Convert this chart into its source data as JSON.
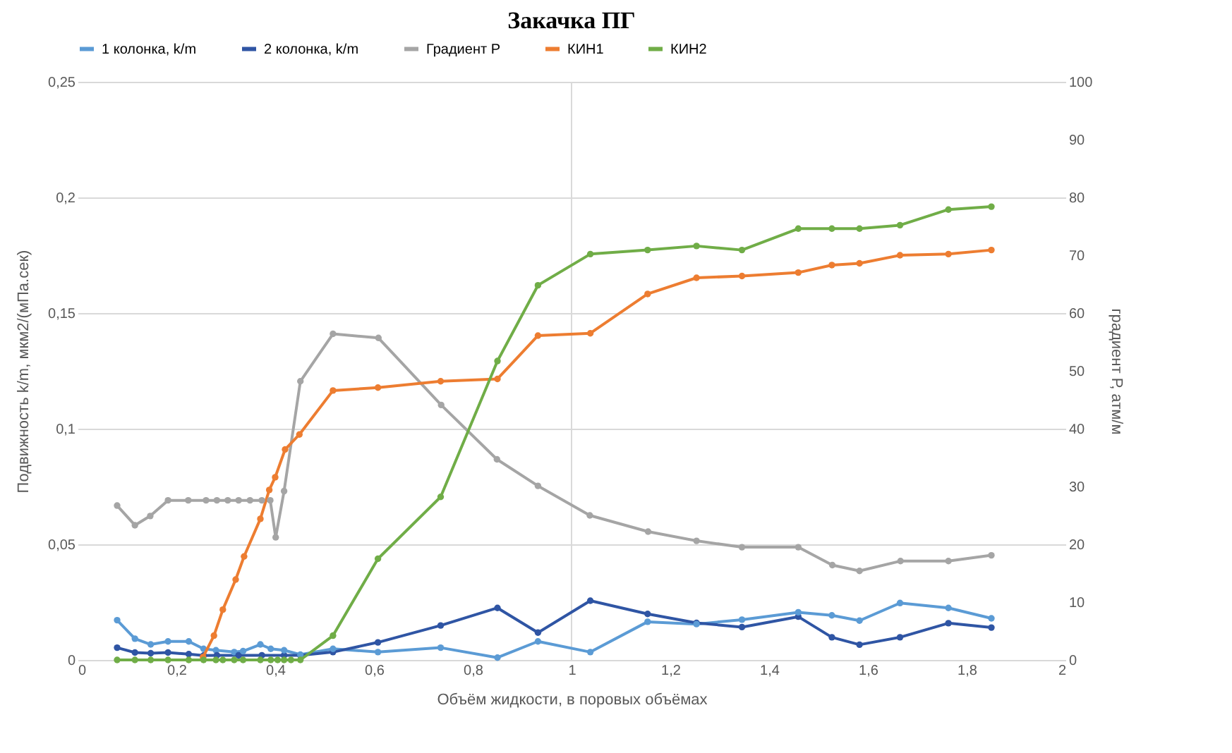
{
  "chart_data": {
    "type": "line",
    "title": "Закачка ПГ",
    "xlabel": "Объём жидкости, в поровых объёмах",
    "ylabel": "Подвижность k/m, мкм2/(мПа.сек)",
    "y2label": "градиент Р, атм/м",
    "xlim": [
      0,
      2
    ],
    "xticks": [
      0,
      {
        "value": 0.2,
        "label": "0,2"
      },
      {
        "value": 0.4,
        "label": "0,4"
      },
      {
        "value": 0.6,
        "label": "0,6"
      },
      {
        "value": 0.8,
        "label": "0,8"
      },
      1,
      {
        "value": 1.2,
        "label": "1,2"
      },
      {
        "value": 1.4,
        "label": "1,4"
      },
      {
        "value": 1.6,
        "label": "1,6"
      },
      {
        "value": 1.8,
        "label": "1,8"
      },
      2
    ],
    "ylim": [
      0,
      0.25
    ],
    "yticks": [
      0,
      {
        "value": 0.05,
        "label": "0,05"
      },
      {
        "value": 0.1,
        "label": "0,1"
      },
      {
        "value": 0.15,
        "label": "0,15"
      },
      {
        "value": 0.2,
        "label": "0,2"
      },
      {
        "value": 0.25,
        "label": "0,25"
      }
    ],
    "y2lim": [
      0,
      100
    ],
    "y2ticks": [
      0,
      10,
      20,
      30,
      40,
      50,
      60,
      70,
      80,
      90,
      100
    ],
    "grid": "y",
    "legend": "top",
    "marker": "circle",
    "line_style": "solid",
    "ref_lines": [
      {
        "axis": "x",
        "value": 1,
        "color": "#d9d9d9"
      }
    ],
    "series": [
      {
        "name": "1 колонка, k/m",
        "color": "#5b9bd5",
        "x": [
          0.08,
          0.116,
          0.148,
          0.183,
          0.225,
          0.255,
          0.28,
          0.317,
          0.335,
          0.37,
          0.391,
          0.418,
          0.451,
          0.517,
          0.608,
          0.735,
          0.85,
          0.932,
          1.038,
          1.154,
          1.253,
          1.345,
          1.459,
          1.527,
          1.583,
          1.665,
          1.763,
          1.85
        ],
        "values": [
          0.0172,
          0.0092,
          0.0067,
          0.008,
          0.008,
          0.0048,
          0.0042,
          0.0034,
          0.0038,
          0.0067,
          0.0048,
          0.0042,
          0.0023,
          0.0048,
          0.0034,
          0.0053,
          0.001,
          0.008,
          0.0034,
          0.0165,
          0.0155,
          0.0174,
          0.0206,
          0.0193,
          0.017,
          0.0246,
          0.0225,
          0.018
        ]
      },
      {
        "name": "2 колонка, k/m",
        "color": "#2f55a4",
        "x": [
          0.08,
          0.116,
          0.148,
          0.183,
          0.225,
          0.255,
          0.282,
          0.326,
          0.373,
          0.418,
          0.451,
          0.517,
          0.608,
          0.735,
          0.85,
          0.932,
          1.038,
          1.154,
          1.253,
          1.345,
          1.459,
          1.527,
          1.583,
          1.665,
          1.763,
          1.85
        ],
        "values": [
          0.0053,
          0.0032,
          0.0029,
          0.0032,
          0.0025,
          0.0019,
          0.002,
          0.002,
          0.002,
          0.002,
          0.002,
          0.0034,
          0.0076,
          0.0149,
          0.0225,
          0.0118,
          0.0256,
          0.0199,
          0.016,
          0.0142,
          0.0187,
          0.0098,
          0.0066,
          0.0098,
          0.0159,
          0.014
        ]
      },
      {
        "name": "Градиент Р",
        "color": "#a5a5a5",
        "axis": "y2",
        "x": [
          0.08,
          0.116,
          0.147,
          0.183,
          0.224,
          0.26,
          0.282,
          0.304,
          0.326,
          0.349,
          0.373,
          0.39,
          0.401,
          0.418,
          0.451,
          0.517,
          0.609,
          0.736,
          0.849,
          0.932,
          1.037,
          1.155,
          1.253,
          1.345,
          1.459,
          1.528,
          1.583,
          1.666,
          1.763,
          1.85
        ],
        "values": [
          26.7,
          23.3,
          24.9,
          27.6,
          27.6,
          27.6,
          27.6,
          27.6,
          27.6,
          27.6,
          27.6,
          27.6,
          21.2,
          29.2,
          48.2,
          56.4,
          55.7,
          44.1,
          34.7,
          30.1,
          25.0,
          22.2,
          20.6,
          19.5,
          19.5,
          16.4,
          15.4,
          17.1,
          17.1,
          18.1
        ]
      },
      {
        "name": "КИН1",
        "color": "#ed7d31",
        "axis": "y2",
        "x": [
          0.254,
          0.276,
          0.294,
          0.32,
          0.337,
          0.37,
          0.388,
          0.4,
          0.42,
          0.449,
          0.517,
          0.608,
          0.735,
          0.85,
          0.932,
          1.038,
          1.154,
          1.253,
          1.345,
          1.459,
          1.527,
          1.583,
          1.665,
          1.763,
          1.85
        ],
        "values": [
          0.5,
          4.2,
          8.7,
          13.9,
          17.9,
          24.4,
          29.4,
          31.6,
          36.4,
          39.0,
          46.6,
          47.1,
          48.2,
          48.6,
          56.1,
          56.5,
          63.3,
          66.1,
          66.4,
          67.0,
          68.3,
          68.6,
          70.0,
          70.2,
          70.9
        ]
      },
      {
        "name": "КИН2",
        "color": "#70ad47",
        "axis": "y2",
        "x": [
          0.08,
          0.116,
          0.148,
          0.183,
          0.225,
          0.255,
          0.28,
          0.294,
          0.317,
          0.335,
          0.37,
          0.391,
          0.405,
          0.418,
          0.432,
          0.451,
          0.517,
          0.608,
          0.735,
          0.85,
          0.932,
          1.038,
          1.154,
          1.253,
          1.345,
          1.459,
          1.527,
          1.583,
          1.665,
          1.763,
          1.85
        ],
        "values": [
          0,
          0,
          0,
          0,
          0,
          0,
          0,
          0,
          0,
          0,
          0,
          0,
          0,
          0,
          0,
          0,
          4.2,
          17.5,
          28.2,
          51.7,
          64.8,
          70.2,
          70.9,
          71.6,
          70.9,
          74.6,
          74.6,
          74.6,
          75.2,
          77.9,
          78.4
        ]
      }
    ]
  }
}
